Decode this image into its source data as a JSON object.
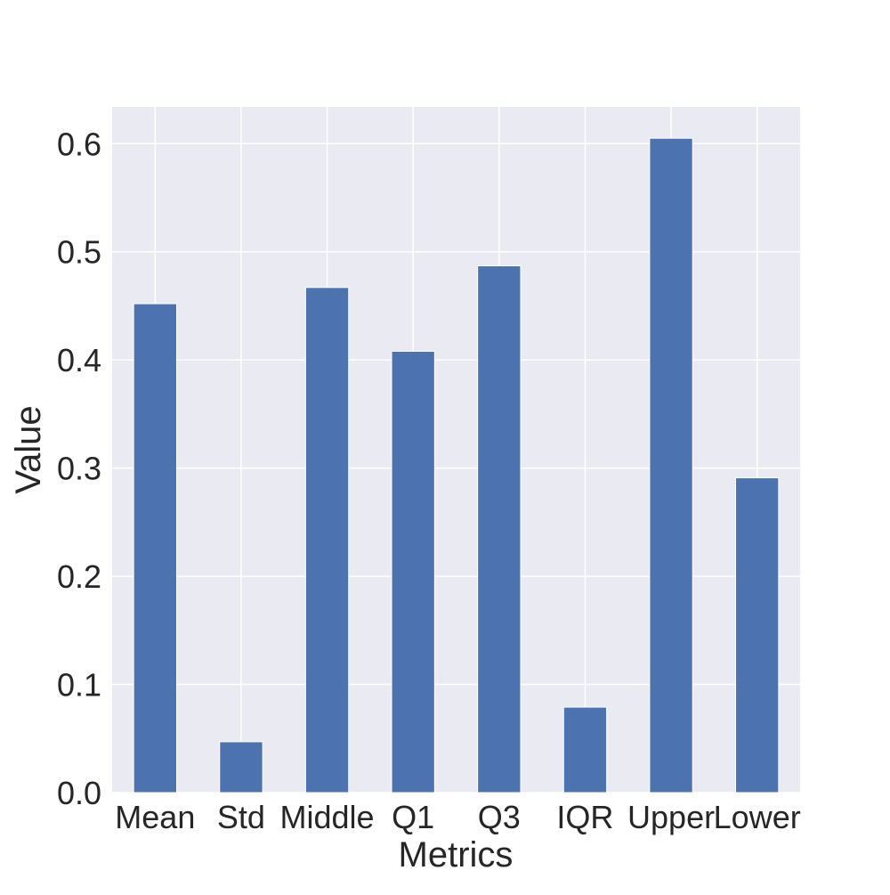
{
  "chart_data": {
    "type": "bar",
    "title": "",
    "xlabel": "Metrics",
    "ylabel": "Value",
    "categories": [
      "Mean",
      "Std",
      "Middle",
      "Q1",
      "Q3",
      "IQR",
      "Upper",
      "Lower"
    ],
    "values": [
      0.452,
      0.047,
      0.467,
      0.408,
      0.487,
      0.079,
      0.605,
      0.291
    ],
    "ylim": [
      0,
      0.634
    ],
    "yticks": [
      "0.0",
      "0.1",
      "0.2",
      "0.3",
      "0.4",
      "0.5",
      "0.6"
    ],
    "grid": true,
    "legend": "none",
    "colors": {
      "bar": "#4c72b0",
      "plot_background": "#eaeaf2",
      "grid": "#ffffff",
      "text": "#262626"
    }
  }
}
